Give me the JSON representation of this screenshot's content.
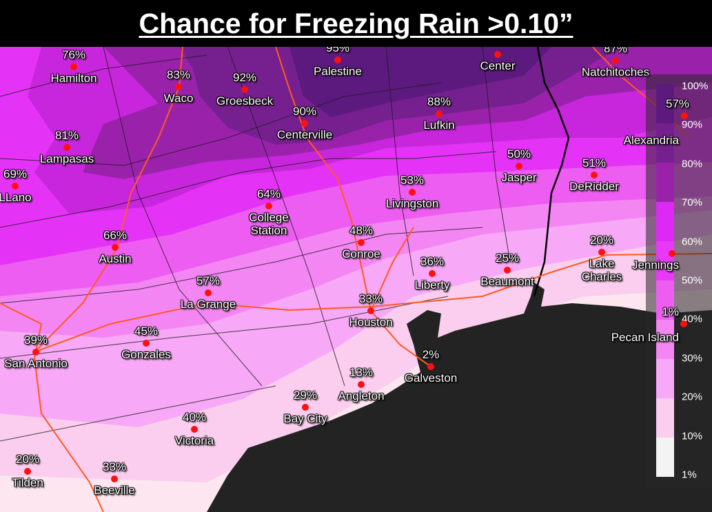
{
  "title": "Chance for Freezing Rain >0.10”",
  "colors": {
    "c100": "#5c1a7e",
    "c90": "#76208f",
    "c80": "#9a22ab",
    "c70": "#c826dc",
    "c60": "#e433f6",
    "c50": "#ee5df2",
    "c40": "#f386f3",
    "c30": "#f7a8f6",
    "c20": "#fbcdee",
    "c10": "#fde6ef",
    "c1": "#f3f3f3",
    "gulf": "#232323",
    "road": "#ff5a1e",
    "city_dot": "#ff1010"
  },
  "legend": {
    "labels": [
      "100%",
      "90%",
      "80%",
      "70%",
      "60%",
      "50%",
      "40%",
      "30%",
      "20%",
      "10%",
      "1%"
    ]
  },
  "cities": [
    {
      "name": "Hamilton",
      "value": "76%"
    },
    {
      "name": "Waco",
      "value": "83%"
    },
    {
      "name": "Groesbeck",
      "value": "92%"
    },
    {
      "name": "Palestine",
      "value": "95%"
    },
    {
      "name": "Center",
      "value": ""
    },
    {
      "name": "Natchitoches",
      "value": "87%"
    },
    {
      "name": "Centerville",
      "value": "90%"
    },
    {
      "name": "Lufkin",
      "value": "88%"
    },
    {
      "name": "Lampasas",
      "value": "81%"
    },
    {
      "name": "LLano",
      "value": "69%"
    },
    {
      "name": "Jasper",
      "value": "50%"
    },
    {
      "name": "DeRidder",
      "value": "51%"
    },
    {
      "name": "Livingston",
      "value": "53%"
    },
    {
      "name": "College Station",
      "value": "64%"
    },
    {
      "name": "Austin",
      "value": "66%"
    },
    {
      "name": "Conroe",
      "value": "48%"
    },
    {
      "name": "Lake Charles",
      "value": "20%"
    },
    {
      "name": "Beaumont",
      "value": "25%"
    },
    {
      "name": "Liberty",
      "value": "36%"
    },
    {
      "name": "La Grange",
      "value": "57%"
    },
    {
      "name": "Houston",
      "value": "33%"
    },
    {
      "name": "San Antonio",
      "value": "39%"
    },
    {
      "name": "Gonzales",
      "value": "45%"
    },
    {
      "name": "Galveston",
      "value": "2%"
    },
    {
      "name": "Angleton",
      "value": "13%"
    },
    {
      "name": "Bay City",
      "value": "29%"
    },
    {
      "name": "Victoria",
      "value": "40%"
    },
    {
      "name": "Tilden",
      "value": "20%"
    },
    {
      "name": "Beeville",
      "value": "33%"
    },
    {
      "name": "Alexandria",
      "value": "57%"
    },
    {
      "name": "Jennings",
      "value": ""
    },
    {
      "name": "Pecan Island",
      "value": "1%"
    }
  ]
}
